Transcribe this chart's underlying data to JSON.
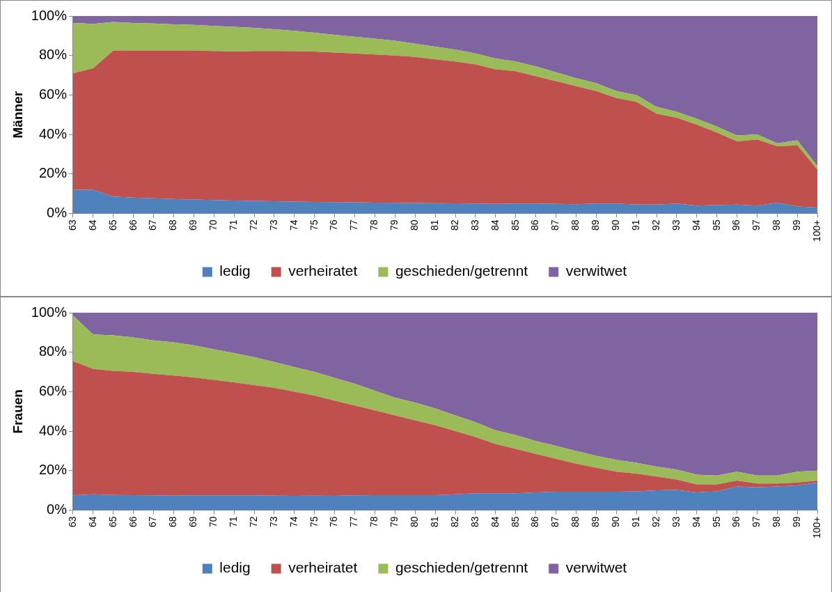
{
  "chart_data": [
    {
      "type": "area",
      "ylabel": "Männer",
      "stacked": true,
      "legend": "bottom",
      "grid": false,
      "marker": "none",
      "categories": [
        "63",
        "64",
        "65",
        "66",
        "67",
        "68",
        "69",
        "70",
        "71",
        "72",
        "73",
        "74",
        "75",
        "76",
        "77",
        "78",
        "79",
        "80",
        "81",
        "82",
        "83",
        "84",
        "85",
        "86",
        "87",
        "88",
        "89",
        "90",
        "91",
        "92",
        "93",
        "94",
        "95",
        "96",
        "97",
        "98",
        "99",
        "100+"
      ],
      "ylim": [
        0,
        100
      ],
      "yticks": [
        {
          "value": 0,
          "label": "0%"
        },
        {
          "value": 20,
          "label": "20%"
        },
        {
          "value": 40,
          "label": "40%"
        },
        {
          "value": 60,
          "label": "60%"
        },
        {
          "value": 80,
          "label": "80%"
        },
        {
          "value": 100,
          "label": "100%"
        }
      ],
      "series": [
        {
          "name": "ledig",
          "color": "#4f81bd",
          "values": [
            12,
            12,
            8.5,
            8,
            7.7,
            7.3,
            7,
            6.8,
            6.5,
            6.3,
            6.2,
            6,
            5.8,
            5.7,
            5.6,
            5.5,
            5.4,
            5.3,
            5.2,
            5.1,
            5,
            4.8,
            5,
            5,
            4.8,
            4.7,
            5,
            5,
            4.5,
            4.5,
            5,
            4,
            4.2,
            4.5,
            4,
            5.5,
            3.5,
            3
          ]
        },
        {
          "name": "verheiratet",
          "color": "#c0504d",
          "values": [
            59,
            61.5,
            74,
            74.5,
            74.8,
            75.2,
            75.5,
            75.5,
            75.5,
            76,
            76.1,
            76.2,
            76.2,
            75.8,
            75.4,
            75,
            74.6,
            74,
            72.8,
            71.9,
            70.5,
            68.2,
            67,
            64.5,
            62.2,
            59.8,
            57,
            53.5,
            52,
            46,
            43.5,
            41,
            36.8,
            32,
            33.5,
            28.5,
            31,
            19
          ]
        },
        {
          "name": "geschieden/getrennt",
          "color": "#9bbb59",
          "values": [
            25.5,
            22.5,
            14.5,
            14,
            13.7,
            13.3,
            13,
            12.7,
            12.5,
            11.7,
            11,
            10.3,
            9.5,
            9,
            8.5,
            8,
            7.5,
            6.7,
            6.5,
            6,
            5.5,
            5.5,
            5,
            5,
            4.5,
            4,
            4,
            3.5,
            3.5,
            3.5,
            3,
            3,
            3,
            3,
            2.5,
            1.5,
            2.5,
            2
          ]
        },
        {
          "name": "verwitwet",
          "color": "#8064a2",
          "values": [
            3.5,
            4,
            3,
            3.5,
            3.8,
            4.2,
            4.5,
            5,
            5.5,
            6,
            6.7,
            7.5,
            8.5,
            9.5,
            10.5,
            11.5,
            12.5,
            14,
            15.5,
            17,
            19,
            21.5,
            23,
            25.5,
            28.5,
            31.5,
            34,
            38,
            40,
            46,
            48.5,
            52,
            56,
            60.5,
            60,
            64.5,
            63,
            76
          ]
        }
      ]
    },
    {
      "type": "area",
      "ylabel": "Frauen",
      "stacked": true,
      "legend": "bottom",
      "grid": false,
      "marker": "none",
      "categories": [
        "63",
        "64",
        "65",
        "66",
        "67",
        "68",
        "69",
        "70",
        "71",
        "72",
        "73",
        "74",
        "75",
        "76",
        "77",
        "78",
        "79",
        "80",
        "81",
        "82",
        "83",
        "84",
        "85",
        "86",
        "87",
        "88",
        "89",
        "90",
        "91",
        "92",
        "93",
        "94",
        "95",
        "96",
        "97",
        "98",
        "99",
        "100+"
      ],
      "ylim": [
        0,
        100
      ],
      "yticks": [
        {
          "value": 0,
          "label": "0%"
        },
        {
          "value": 20,
          "label": "20%"
        },
        {
          "value": 40,
          "label": "40%"
        },
        {
          "value": 60,
          "label": "60%"
        },
        {
          "value": 80,
          "label": "80%"
        },
        {
          "value": 100,
          "label": "100%"
        }
      ],
      "series": [
        {
          "name": "ledig",
          "color": "#4f81bd",
          "values": [
            7.5,
            8,
            7.7,
            7.6,
            7.5,
            7.3,
            7.5,
            7.5,
            7.5,
            7.5,
            7.3,
            7.2,
            7.3,
            7.2,
            7.5,
            7.6,
            7.6,
            7.6,
            7.6,
            8,
            8.5,
            8.5,
            8.5,
            9,
            9.3,
            9.3,
            9.3,
            9.3,
            9.5,
            10,
            10.2,
            9,
            9.5,
            12,
            11.5,
            12,
            12.5,
            14
          ]
        },
        {
          "name": "verheiratet",
          "color": "#c0504d",
          "values": [
            68,
            63.5,
            62.8,
            62.4,
            61.5,
            60.9,
            59.7,
            58.5,
            57.2,
            55.8,
            54.7,
            52.8,
            50.7,
            48.3,
            45.5,
            42.9,
            40.4,
            37.9,
            35.4,
            32,
            28.5,
            25,
            22.5,
            19.5,
            16.7,
            14.2,
            12.2,
            10.2,
            9,
            7,
            5.3,
            4,
            3.5,
            3,
            2,
            1.5,
            1.5,
            1
          ]
        },
        {
          "name": "geschieden/getrennt",
          "color": "#9bbb59",
          "values": [
            23,
            17.5,
            18,
            17.5,
            17,
            16.8,
            16.3,
            15.5,
            14.8,
            14.2,
            13,
            12.5,
            12,
            11.5,
            11,
            10,
            9,
            9,
            8.5,
            8,
            7.5,
            7,
            7,
            6.5,
            6.5,
            6.5,
            6,
            6,
            5.5,
            5,
            5,
            5,
            4.5,
            4.5,
            4,
            4,
            5.5,
            5
          ]
        },
        {
          "name": "verwitwet",
          "color": "#8064a2",
          "values": [
            1.5,
            11,
            11.5,
            12.5,
            14,
            15,
            16.5,
            18.5,
            20.5,
            22.5,
            25,
            27.5,
            30,
            33,
            36,
            39.5,
            43,
            45.5,
            48.5,
            52,
            55.5,
            59.5,
            62,
            65,
            67.5,
            70,
            72.5,
            74.5,
            76,
            78,
            79.5,
            82,
            82.5,
            80.5,
            82.5,
            82.5,
            80.5,
            80
          ]
        }
      ]
    }
  ]
}
